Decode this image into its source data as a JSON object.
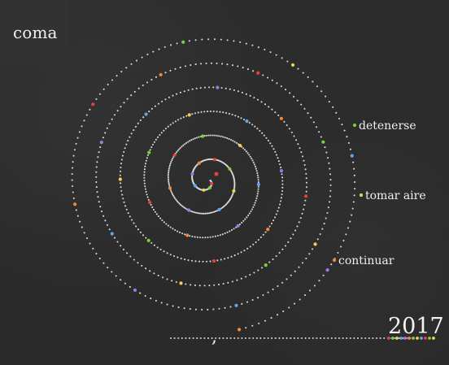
{
  "brand": {
    "logo_text": "coma"
  },
  "labels": {
    "detenerse": "detenerse",
    "tomar_aire": "tomar aire",
    "continuar": "continuar",
    "comma_mark": ",",
    "year": "2017"
  },
  "colors": {
    "background": "#2b2b2b",
    "logo_panel": "#323232",
    "text": "#f1f1f1",
    "dot": "#d8d8d8",
    "red": "#e84141",
    "green": "#7ccf3a",
    "yellow": "#f0d34a",
    "blue": "#5da7f3",
    "purple": "#a277e8",
    "orange": "#f08a3a"
  }
}
